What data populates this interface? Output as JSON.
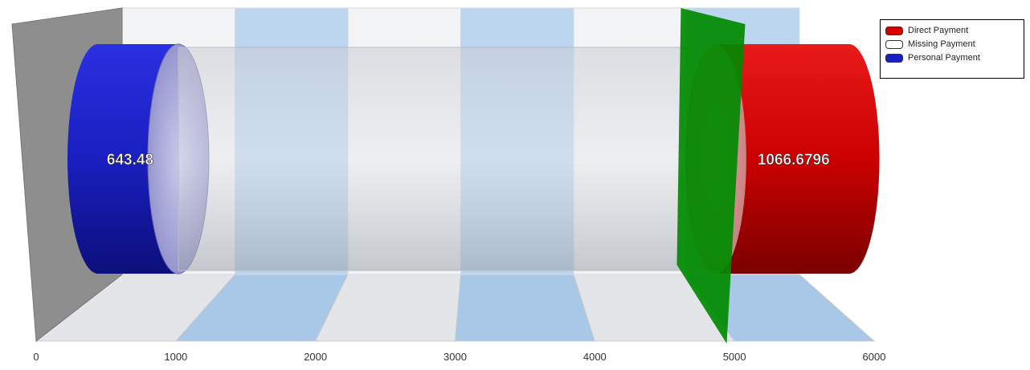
{
  "chart_data": {
    "type": "bar",
    "orientation": "horizontal",
    "style": "3d-cylinder",
    "xlim": [
      0,
      6000
    ],
    "x_ticks": [
      "0",
      "1000",
      "2000",
      "3000",
      "4000",
      "5000",
      "6000"
    ],
    "gridlines": "alternating vertical bands",
    "legend_position": "top-right",
    "series": [
      {
        "name": "Personal Payment",
        "start": 0,
        "end": 643.48,
        "label": "643.48",
        "color": "#1a1fc0"
      },
      {
        "name": "Missing Payment",
        "start": 643.48,
        "end": 4950,
        "label": "",
        "color": "#d8dde4"
      },
      {
        "name": "Direct Payment",
        "start": 4950,
        "end": 6016.6796,
        "label": "1066.6796",
        "color": "#cc0000"
      }
    ],
    "reference_line": {
      "value": 4950,
      "color": "#008a00"
    }
  },
  "legend": {
    "items": [
      {
        "label": "Direct Payment",
        "color": "#d60000"
      },
      {
        "label": "Missing Payment",
        "color": "#ffffff"
      },
      {
        "label": "Personal Payment",
        "color": "#1a1fc0"
      }
    ]
  }
}
